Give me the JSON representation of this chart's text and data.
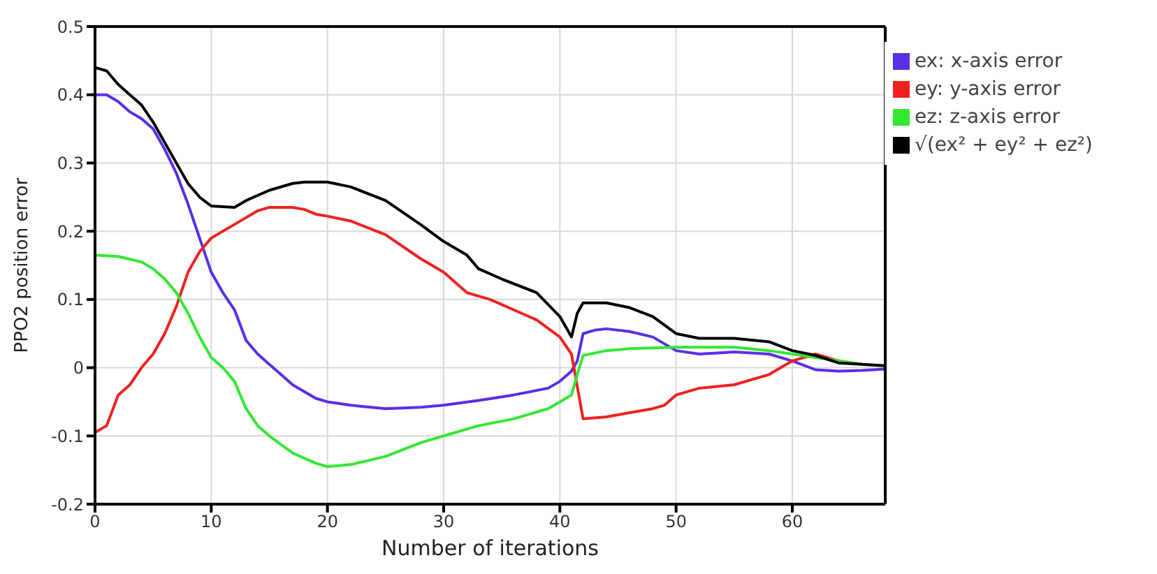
{
  "chart_data": {
    "type": "line",
    "xlabel": "Number of iterations",
    "ylabel": "PPO2 position error",
    "xlim": [
      0,
      68
    ],
    "xticks": [
      0,
      10,
      20,
      30,
      40,
      50,
      60
    ],
    "ylim": [
      -0.2,
      0.5
    ],
    "yticks": [
      -0.2,
      -0.1,
      0,
      0.1,
      0.2,
      0.3,
      0.4,
      0.5
    ],
    "grid": true,
    "legend": "top right",
    "marker": "none",
    "line_style": "solid",
    "series": [
      {
        "name": "ex: x-axis error",
        "color": "#5a2ee6",
        "x": [
          0,
          1,
          2,
          3,
          4,
          5,
          6,
          7,
          8,
          9,
          10,
          11,
          12,
          13,
          14,
          15,
          16,
          17,
          18,
          19,
          20,
          22,
          25,
          28,
          30,
          33,
          36,
          39,
          40,
          41,
          41.5,
          42,
          43,
          44,
          46,
          48,
          50,
          52,
          55,
          58,
          60,
          62,
          64,
          66,
          68
        ],
        "values": [
          0.4,
          0.4,
          0.39,
          0.375,
          0.365,
          0.35,
          0.32,
          0.285,
          0.24,
          0.19,
          0.14,
          0.11,
          0.085,
          0.04,
          0.02,
          0.005,
          -0.01,
          -0.025,
          -0.035,
          -0.045,
          -0.05,
          -0.055,
          -0.06,
          -0.058,
          -0.055,
          -0.048,
          -0.04,
          -0.03,
          -0.02,
          -0.005,
          0.01,
          0.05,
          0.055,
          0.057,
          0.053,
          0.045,
          0.025,
          0.02,
          0.023,
          0.02,
          0.01,
          -0.003,
          -0.005,
          -0.004,
          -0.002
        ]
      },
      {
        "name": "ey: y-axis error",
        "color": "#f02020",
        "x": [
          0,
          1,
          2,
          3,
          4,
          5,
          6,
          7,
          8,
          9,
          10,
          11,
          12,
          13,
          14,
          15,
          17,
          18,
          19,
          20,
          22,
          25,
          28,
          30,
          32,
          34,
          36,
          38,
          40,
          41,
          42,
          44,
          46,
          48,
          49,
          50,
          52,
          55,
          58,
          60,
          62,
          64,
          66
        ],
        "values": [
          -0.095,
          -0.085,
          -0.04,
          -0.025,
          0,
          0.02,
          0.05,
          0.09,
          0.14,
          0.17,
          0.19,
          0.2,
          0.21,
          0.22,
          0.23,
          0.235,
          0.235,
          0.232,
          0.225,
          0.222,
          0.215,
          0.195,
          0.16,
          0.14,
          0.11,
          0.1,
          0.085,
          0.07,
          0.045,
          0.02,
          -0.075,
          -0.072,
          -0.066,
          -0.06,
          -0.055,
          -0.04,
          -0.03,
          -0.025,
          -0.01,
          0.01,
          0.02,
          0.01,
          0.005
        ]
      },
      {
        "name": "ez: z-axis error",
        "color": "#33e833",
        "x": [
          0,
          2,
          4,
          5,
          6,
          7,
          8,
          9,
          10,
          11,
          12,
          13,
          14,
          15,
          17,
          19,
          20,
          22,
          25,
          28,
          30,
          33,
          36,
          39,
          40,
          41,
          41.5,
          42,
          44,
          46,
          50,
          52,
          55,
          58,
          60,
          62,
          64,
          66,
          68
        ],
        "values": [
          0.165,
          0.163,
          0.155,
          0.145,
          0.13,
          0.11,
          0.08,
          0.045,
          0.015,
          0,
          -0.02,
          -0.06,
          -0.085,
          -0.1,
          -0.125,
          -0.14,
          -0.145,
          -0.142,
          -0.13,
          -0.11,
          -0.1,
          -0.085,
          -0.075,
          -0.06,
          -0.05,
          -0.04,
          -0.01,
          0.018,
          0.025,
          0.028,
          0.03,
          0.03,
          0.03,
          0.025,
          0.02,
          0.015,
          0.01,
          0.005,
          0.003
        ]
      },
      {
        "name": "√(ex² + ey² + ez²)",
        "color": "#000000",
        "x": [
          0,
          1,
          2,
          3,
          4,
          5,
          6,
          7,
          8,
          9,
          10,
          12,
          13,
          15,
          17,
          18,
          20,
          22,
          25,
          28,
          30,
          32,
          33,
          35,
          38,
          40,
          41,
          41.5,
          42,
          44,
          46,
          48,
          50,
          52,
          55,
          58,
          60,
          62,
          64,
          66,
          68
        ],
        "values": [
          0.44,
          0.435,
          0.415,
          0.4,
          0.385,
          0.36,
          0.33,
          0.3,
          0.27,
          0.25,
          0.237,
          0.235,
          0.245,
          0.26,
          0.27,
          0.272,
          0.272,
          0.265,
          0.245,
          0.21,
          0.185,
          0.165,
          0.145,
          0.13,
          0.11,
          0.075,
          0.045,
          0.08,
          0.095,
          0.095,
          0.088,
          0.075,
          0.05,
          0.043,
          0.043,
          0.038,
          0.025,
          0.018,
          0.007,
          0.005,
          0.003
        ]
      }
    ]
  }
}
